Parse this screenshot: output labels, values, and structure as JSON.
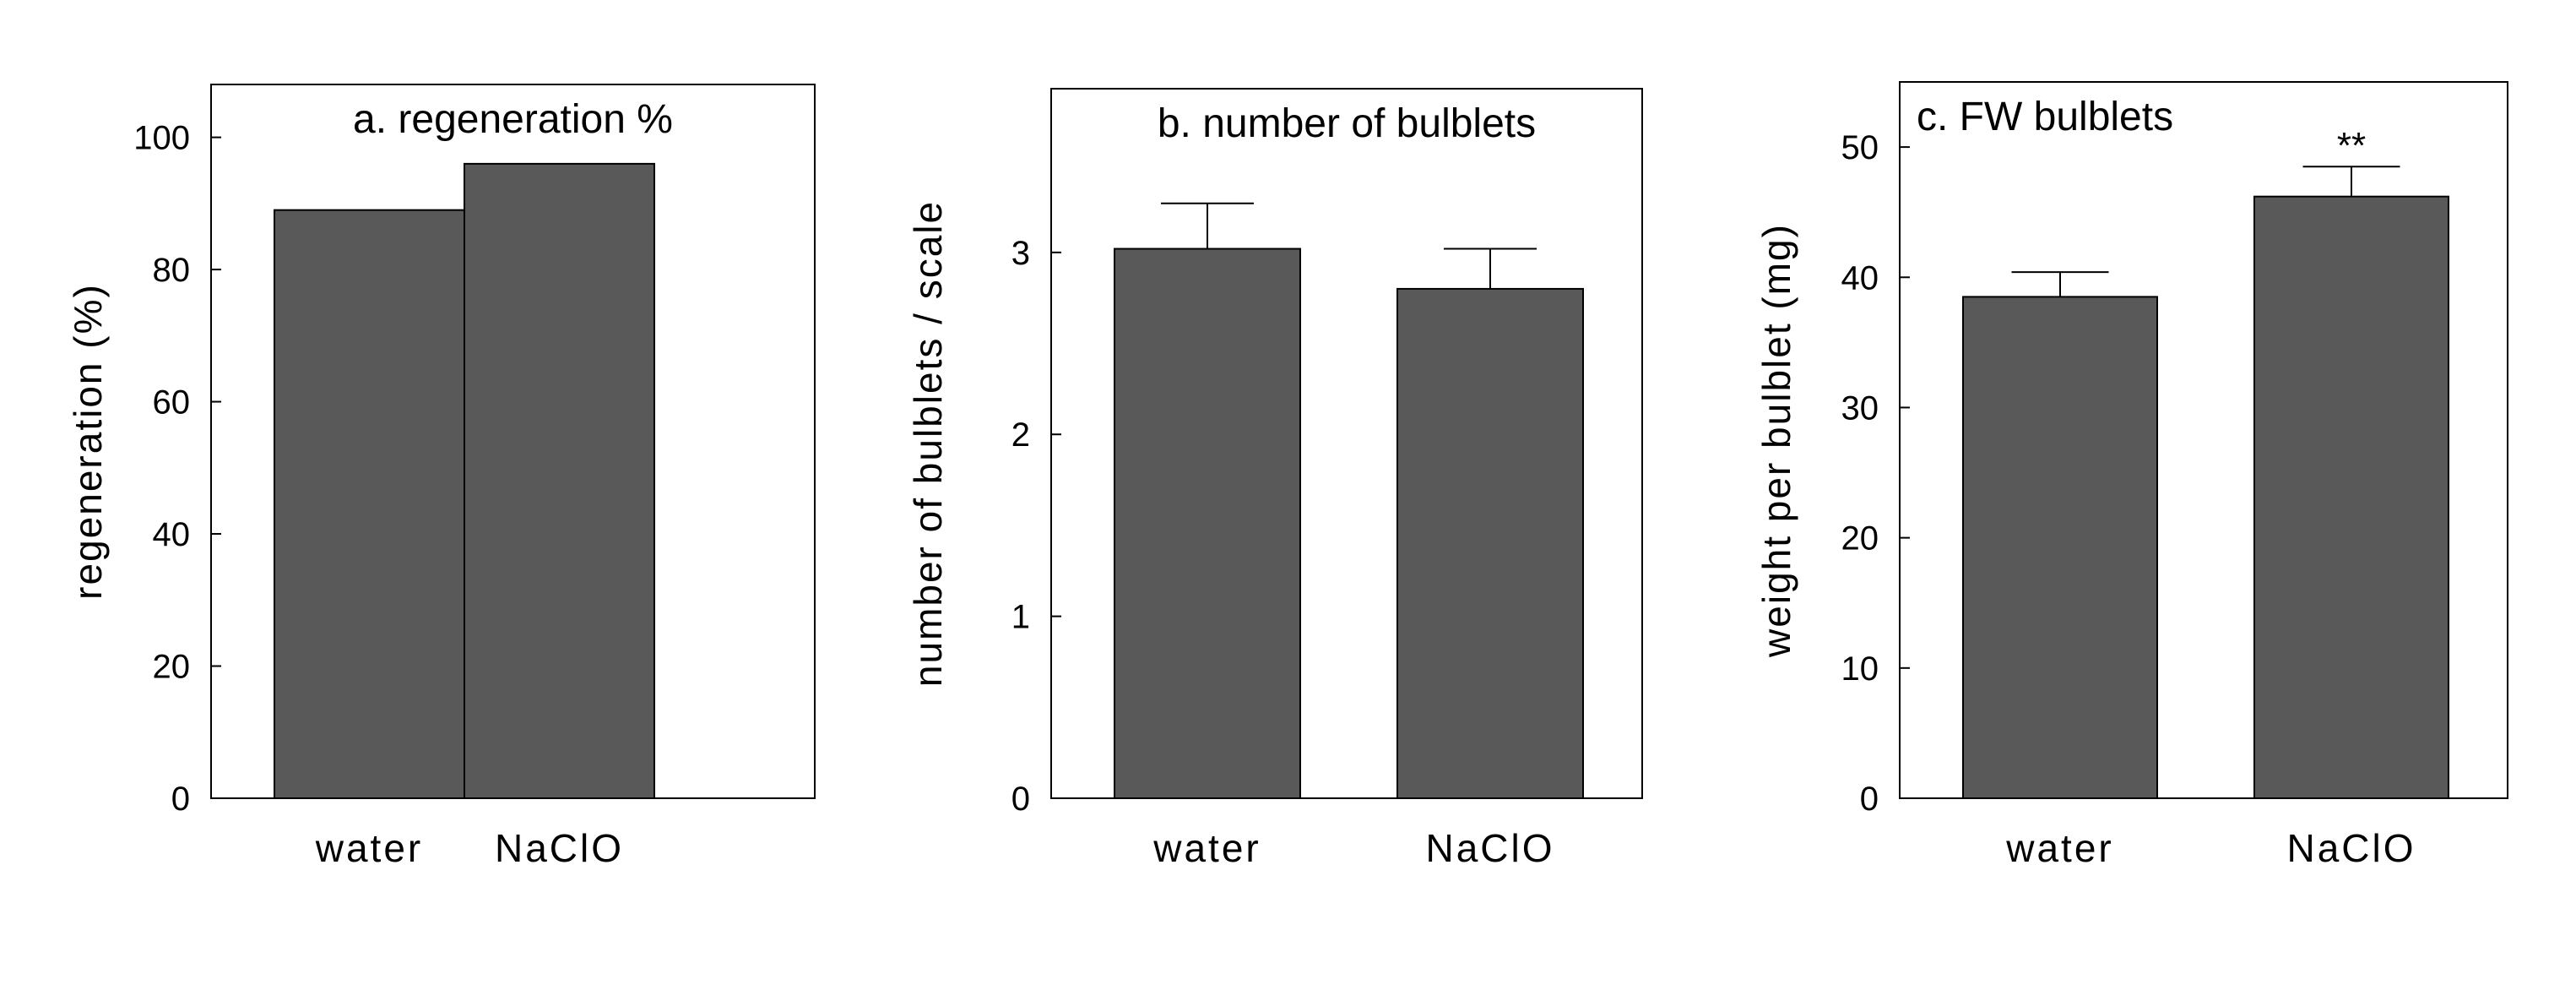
{
  "colors": {
    "bar_fill": "#595959",
    "bar_stroke": "#000000",
    "axis": "#000000",
    "background": "#ffffff"
  },
  "chart_data": [
    {
      "type": "bar",
      "title": "a. regeneration %",
      "xlabel": "",
      "ylabel": "regeneration (%)",
      "categories": [
        "water",
        "NaClO"
      ],
      "values": [
        89,
        96
      ],
      "errors": null,
      "significance": [
        "",
        ""
      ],
      "ylim": [
        0,
        108
      ],
      "yticks": [
        0,
        20,
        40,
        60,
        80,
        100
      ],
      "grid": false,
      "legend": "none"
    },
    {
      "type": "bar",
      "title": "b. number of bulblets",
      "xlabel": "",
      "ylabel": "number of bulblets / scale",
      "categories": [
        "water",
        "NaClO"
      ],
      "values": [
        3.02,
        2.8
      ],
      "errors": [
        0.25,
        0.22
      ],
      "significance": [
        "",
        ""
      ],
      "ylim": [
        0,
        3.9
      ],
      "yticks": [
        0,
        1,
        2,
        3
      ],
      "grid": false,
      "legend": "none"
    },
    {
      "type": "bar",
      "title": "c. FW bulblets",
      "xlabel": "",
      "ylabel": "weight per bulblet (mg)",
      "categories": [
        "water",
        "NaClO"
      ],
      "values": [
        38.5,
        46.2
      ],
      "errors": [
        1.9,
        2.3
      ],
      "significance": [
        "",
        "**"
      ],
      "ylim": [
        0,
        55
      ],
      "yticks": [
        0,
        10,
        20,
        30,
        40,
        50
      ],
      "grid": false,
      "legend": "none"
    }
  ]
}
